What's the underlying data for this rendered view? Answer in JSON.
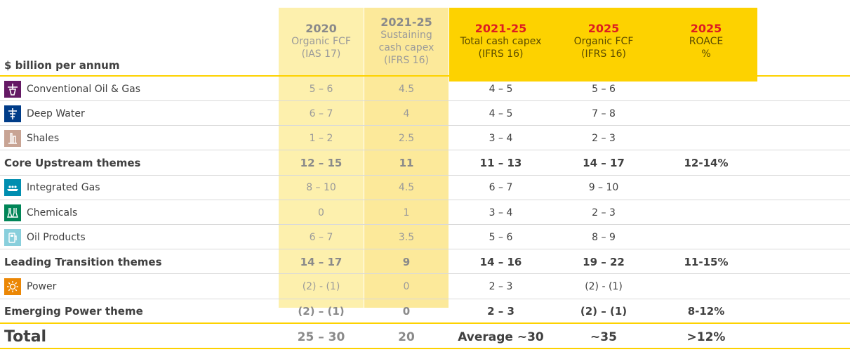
{
  "unit_label": "$ billion per annum",
  "columns": [
    {
      "year": "2020",
      "lines": [
        "Organic FCF",
        "(IAS 17)"
      ]
    },
    {
      "year": "2021-25",
      "lines": [
        "Sustaining",
        "cash capex",
        "(IFRS 16)"
      ]
    },
    {
      "year": "2021-25",
      "lines": [
        "Total cash capex",
        "(IFRS 16)"
      ]
    },
    {
      "year": "2025",
      "lines": [
        "Organic FCF",
        "(IFRS 16)"
      ]
    },
    {
      "year": "2025",
      "lines": [
        "ROACE",
        "%"
      ]
    }
  ],
  "rows": [
    {
      "label": "Conventional Oil & Gas",
      "icon": "oil-rig-icon",
      "icon_color": "#641964",
      "values": [
        "5 – 6",
        "4.5",
        "4 – 5",
        "5 – 6",
        ""
      ]
    },
    {
      "label": "Deep Water",
      "icon": "deep-water-platform-icon",
      "icon_color": "#003c88",
      "values": [
        "6 – 7",
        "4",
        "4 – 5",
        "7 – 8",
        ""
      ]
    },
    {
      "label": "Shales",
      "icon": "shale-derrick-icon",
      "icon_color": "#c8a494",
      "values": [
        "1 – 2",
        "2.5",
        "3 – 4",
        "2 – 3",
        ""
      ]
    },
    {
      "label": "Core Upstream themes",
      "bold": true,
      "values": [
        "12 – 15",
        "11",
        "11 – 13",
        "14 – 17",
        "12-14%"
      ]
    },
    {
      "label": "Integrated Gas",
      "icon": "lng-ship-icon",
      "icon_color": "#008eb0",
      "values": [
        "8 – 10",
        "4.5",
        "6 – 7",
        "9 – 10",
        ""
      ]
    },
    {
      "label": "Chemicals",
      "icon": "flask-icon",
      "icon_color": "#008557",
      "values": [
        "0",
        "1",
        "3 – 4",
        "2 – 3",
        ""
      ]
    },
    {
      "label": "Oil Products",
      "icon": "fuel-pump-icon",
      "icon_color": "#89cfdc",
      "values": [
        "6 – 7",
        "3.5",
        "5 – 6",
        "8 – 9",
        ""
      ]
    },
    {
      "label": "Leading Transition themes",
      "bold": true,
      "values": [
        "14 – 17",
        "9",
        "14 – 16",
        "19 – 22",
        "11-15%"
      ]
    },
    {
      "label": "Power",
      "icon": "sun-power-icon",
      "icon_color": "#eb8705",
      "values": [
        "(2) - (1)",
        "0",
        "2 – 3",
        "(2) - (1)",
        ""
      ]
    },
    {
      "label": "Emerging Power theme",
      "bold": true,
      "values": [
        "(2) – (1)",
        "0",
        "2 – 3",
        "(2) – (1)",
        "8-12%"
      ]
    },
    {
      "label": "Total",
      "total": true,
      "values": [
        "25 – 30",
        "20",
        "Average ~30",
        "~35",
        ">12%"
      ]
    }
  ]
}
